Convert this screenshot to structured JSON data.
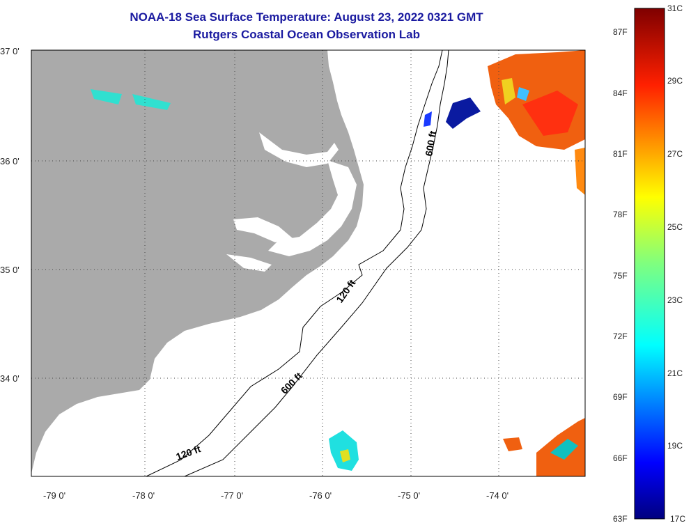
{
  "title": "NOAA-18 Sea Surface Temperature:  August 23, 2022 0321 GMT",
  "subtitle": "Rutgers Coastal Ocean Observation Lab",
  "lat_labels": [
    "37 0'",
    "36 0'",
    "35 0'",
    "34 0'"
  ],
  "lon_labels": [
    "-79 0'",
    "-78 0'",
    "-77 0'",
    "-76 0'",
    "-75 0'",
    "-74 0'"
  ],
  "contours": {
    "c1": "600 ft",
    "c2": "120 ft",
    "c3": "600 ft",
    "c4": "120 ft"
  },
  "colorbar": {
    "fahrenheit": [
      "87F",
      "84F",
      "81F",
      "78F",
      "75F",
      "72F",
      "69F",
      "66F",
      "63F"
    ],
    "celsius": [
      "31C",
      "29C",
      "27C",
      "25C",
      "23C",
      "21C",
      "19C",
      "17C"
    ]
  },
  "colors": {
    "land": "#aaaaaa",
    "title": "#1a1aa0",
    "warm": "#f06010",
    "cool": "#0a1aa0"
  }
}
